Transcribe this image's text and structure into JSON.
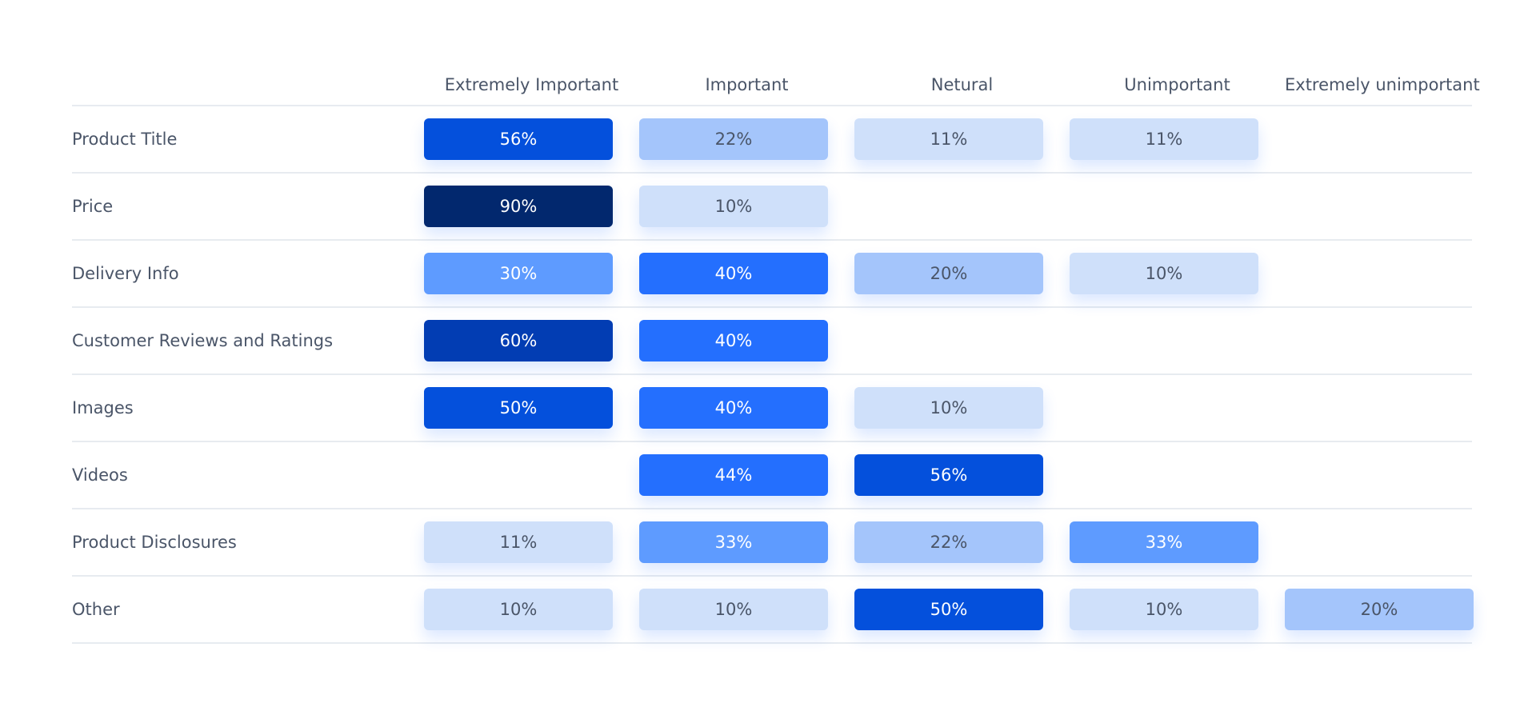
{
  "chart_data": {
    "type": "heatmap",
    "columns": [
      "Extremely Important",
      "Important",
      "Netural",
      "Unimportant",
      "Extremely unimportant"
    ],
    "rows": [
      {
        "label": "Product Title",
        "values": [
          "56%",
          "22%",
          "11%",
          "11%",
          ""
        ]
      },
      {
        "label": "Price",
        "values": [
          "90%",
          "10%",
          "",
          "",
          ""
        ]
      },
      {
        "label": "Delivery Info",
        "values": [
          "30%",
          "40%",
          "20%",
          "10%",
          ""
        ]
      },
      {
        "label": "Customer Reviews and Ratings",
        "values": [
          "60%",
          "40%",
          "",
          "",
          ""
        ]
      },
      {
        "label": "Images",
        "values": [
          "50%",
          "40%",
          "10%",
          "",
          ""
        ]
      },
      {
        "label": "Videos",
        "values": [
          "",
          "44%",
          "56%",
          "",
          ""
        ]
      },
      {
        "label": "Product Disclosures",
        "values": [
          "11%",
          "33%",
          "22%",
          "33%",
          ""
        ]
      },
      {
        "label": "Other",
        "values": [
          "10%",
          "10%",
          "50%",
          "10%",
          "20%"
        ]
      }
    ],
    "color_scale": [
      {
        "min": 0,
        "max": 14,
        "bg": "#cfe0fa",
        "fg": "#4a5568"
      },
      {
        "min": 15,
        "max": 25,
        "bg": "#a4c5fb",
        "fg": "#4a5568"
      },
      {
        "min": 26,
        "max": 35,
        "bg": "#5e9bff",
        "fg": "#ffffff"
      },
      {
        "min": 36,
        "max": 45,
        "bg": "#246ffe",
        "fg": "#ffffff"
      },
      {
        "min": 46,
        "max": 59,
        "bg": "#0450dc",
        "fg": "#ffffff"
      },
      {
        "min": 60,
        "max": 75,
        "bg": "#023db3",
        "fg": "#ffffff"
      },
      {
        "min": 76,
        "max": 100,
        "bg": "#02286e",
        "fg": "#ffffff"
      }
    ]
  }
}
